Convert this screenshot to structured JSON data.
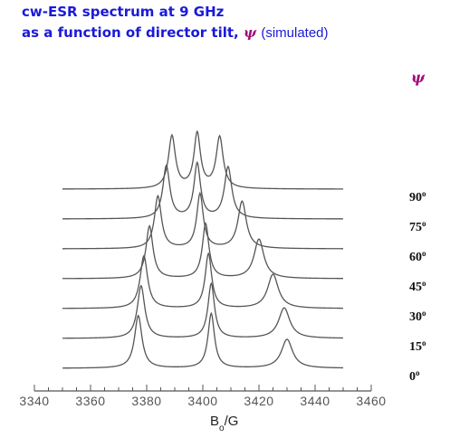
{
  "chart_data": {
    "type": "line",
    "title_line1": "cw-ESR spectrum at 9 GHz",
    "title_line2": "as a function of director tilt,",
    "psi_symbol": "ψ",
    "title_suffix": "(simulated)",
    "xlabel_main": "B",
    "xlabel_sub": "o",
    "xlabel_unit": "/G",
    "xlim": [
      3340,
      3460
    ],
    "xticks": [
      3340,
      3360,
      3380,
      3400,
      3420,
      3440,
      3460
    ],
    "data_range": [
      3350,
      3450
    ],
    "series": [
      {
        "angle": "0",
        "peaks": [
          3377,
          3403,
          3430
        ],
        "widths": [
          1.6,
          1.4,
          2.4
        ],
        "heights": [
          1.0,
          1.04,
          0.55
        ]
      },
      {
        "angle": "15",
        "peaks": [
          3378,
          3403,
          3429
        ],
        "widths": [
          1.6,
          1.4,
          2.4
        ],
        "heights": [
          1.0,
          1.04,
          0.58
        ]
      },
      {
        "angle": "30",
        "peaks": [
          3379,
          3402,
          3425
        ],
        "widths": [
          1.6,
          1.4,
          2.3
        ],
        "heights": [
          1.0,
          1.04,
          0.65
        ]
      },
      {
        "angle": "45",
        "peaks": [
          3381,
          3401,
          3420
        ],
        "widths": [
          1.5,
          1.4,
          2.1
        ],
        "heights": [
          1.0,
          1.04,
          0.75
        ]
      },
      {
        "angle": "60",
        "peaks": [
          3384,
          3399,
          3414
        ],
        "widths": [
          1.5,
          1.4,
          1.8
        ],
        "heights": [
          1.0,
          1.04,
          0.9
        ]
      },
      {
        "angle": "75",
        "peaks": [
          3387,
          3398,
          3409
        ],
        "widths": [
          1.5,
          1.4,
          1.6
        ],
        "heights": [
          1.0,
          1.04,
          0.98
        ]
      },
      {
        "angle": "90",
        "peaks": [
          3389,
          3398,
          3406
        ],
        "widths": [
          1.5,
          1.4,
          1.5
        ],
        "heights": [
          1.0,
          1.04,
          0.98
        ]
      }
    ],
    "angle_unit": "o",
    "colors": {
      "title": "#1a1ad8",
      "psi": "#a0107a",
      "curve": "#555555",
      "axis": "#555555"
    }
  }
}
